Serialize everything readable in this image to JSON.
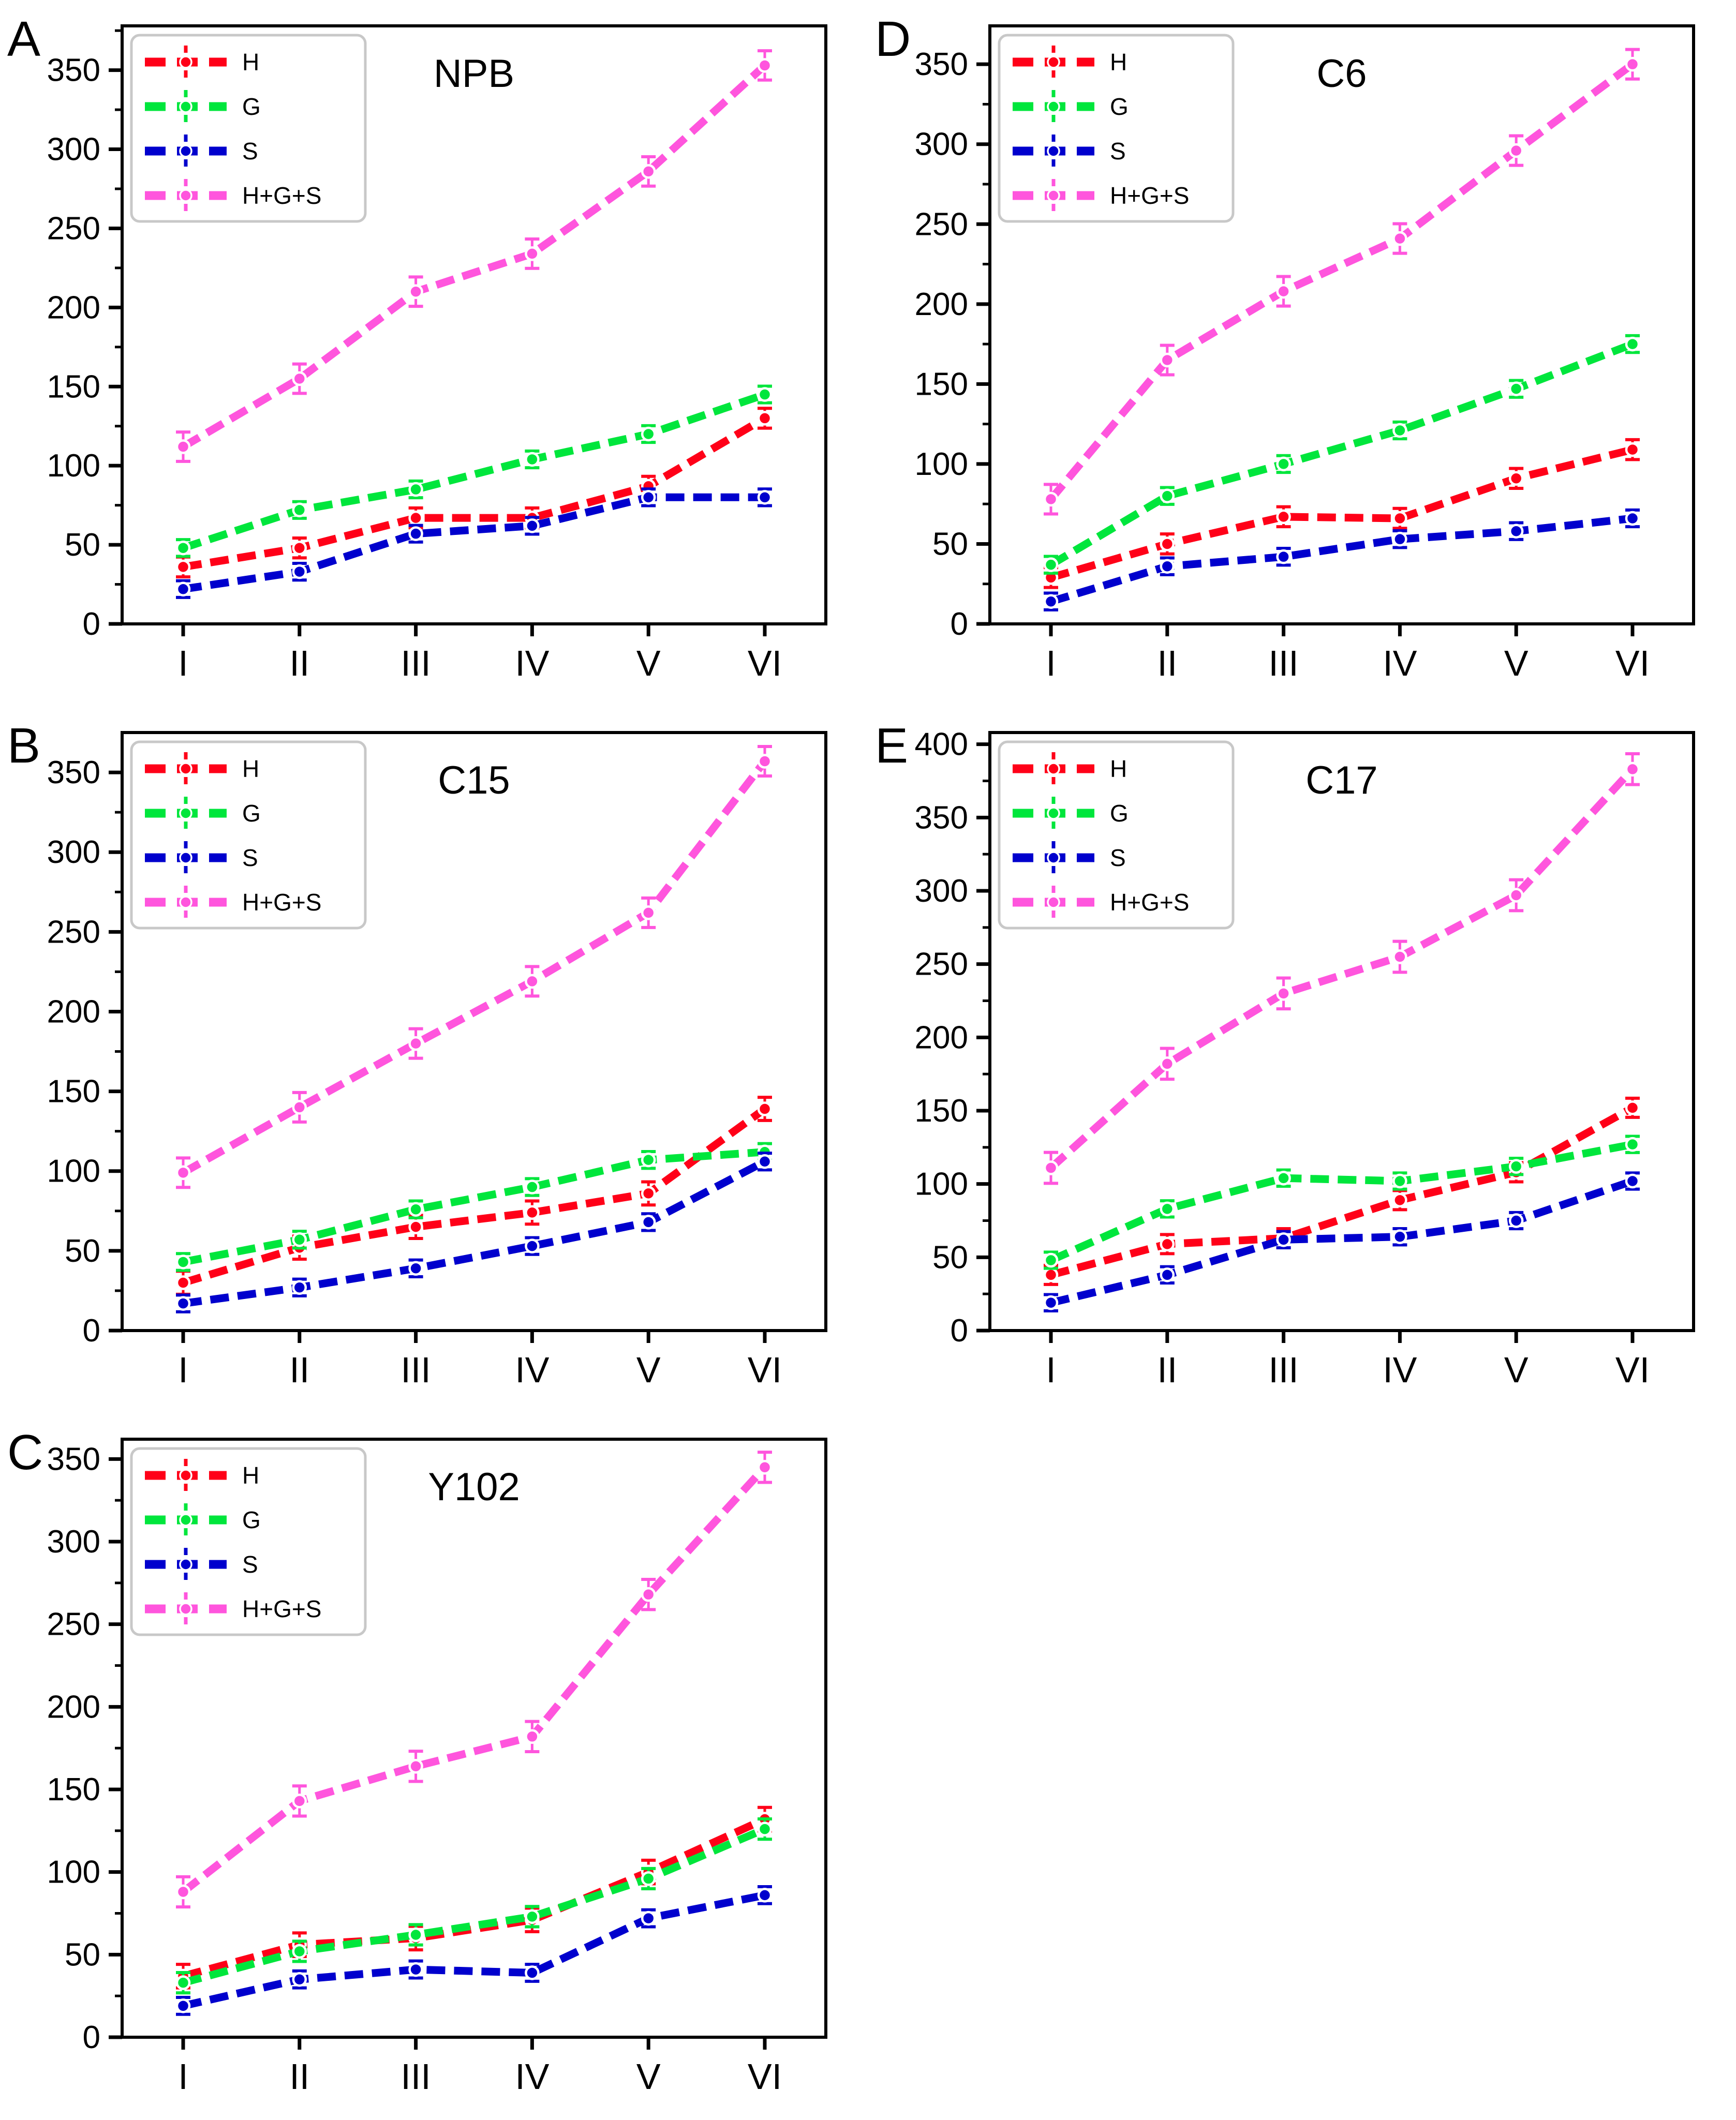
{
  "figure": {
    "background": "#ffffff",
    "panel_order_grid": [
      "A",
      "D",
      "B",
      "E",
      "C",
      ""
    ],
    "axis_color": "#000000",
    "legend_border_color": "#c8c8c8"
  },
  "chart_data": [
    {
      "type": "line",
      "panel": "A",
      "title": "NPB",
      "categories": [
        "I",
        "II",
        "III",
        "IV",
        "V",
        "VI"
      ],
      "xlabel": "",
      "ylabel": "",
      "ylim": [
        0,
        378
      ],
      "yticks": [
        0,
        50,
        100,
        150,
        200,
        250,
        300,
        350
      ],
      "grid": false,
      "legend_position": "upper-left",
      "series": [
        {
          "name": "H",
          "color": "#FF0018",
          "err": 3,
          "values": [
            36,
            48,
            67,
            67,
            87,
            130
          ]
        },
        {
          "name": "G",
          "color": "#00E63C",
          "err": 2,
          "values": [
            48,
            72,
            85,
            104,
            120,
            145
          ]
        },
        {
          "name": "S",
          "color": "#0000CD",
          "err": 2,
          "values": [
            22,
            33,
            57,
            62,
            80,
            80
          ]
        },
        {
          "name": "H+G+S",
          "color": "#FF55DD",
          "err": 6,
          "values": [
            112,
            155,
            210,
            234,
            286,
            353
          ]
        }
      ]
    },
    {
      "type": "line",
      "panel": "D",
      "title": "C6",
      "categories": [
        "I",
        "II",
        "III",
        "IV",
        "V",
        "VI"
      ],
      "xlabel": "",
      "ylabel": "",
      "ylim": [
        0,
        374
      ],
      "yticks": [
        0,
        50,
        100,
        150,
        200,
        250,
        300,
        350
      ],
      "grid": false,
      "legend_position": "upper-left",
      "series": [
        {
          "name": "H",
          "color": "#FF0018",
          "err": 3,
          "values": [
            29,
            50,
            67,
            66,
            91,
            109
          ]
        },
        {
          "name": "G",
          "color": "#00E63C",
          "err": 2,
          "values": [
            37,
            80,
            100,
            121,
            147,
            175
          ]
        },
        {
          "name": "S",
          "color": "#0000CD",
          "err": 2,
          "values": [
            14,
            36,
            42,
            53,
            58,
            66
          ]
        },
        {
          "name": "H+G+S",
          "color": "#FF55DD",
          "err": 6,
          "values": [
            78,
            165,
            208,
            241,
            296,
            350
          ]
        }
      ]
    },
    {
      "type": "line",
      "panel": "B",
      "title": "C15",
      "categories": [
        "I",
        "II",
        "III",
        "IV",
        "V",
        "VI"
      ],
      "xlabel": "",
      "ylabel": "",
      "ylim": [
        0,
        375
      ],
      "yticks": [
        0,
        50,
        100,
        150,
        200,
        250,
        300,
        350
      ],
      "grid": false,
      "legend_position": "upper-left",
      "series": [
        {
          "name": "H",
          "color": "#FF0018",
          "err": 4,
          "values": [
            30,
            52,
            65,
            74,
            86,
            139
          ]
        },
        {
          "name": "G",
          "color": "#00E63C",
          "err": 2,
          "values": [
            43,
            57,
            76,
            90,
            107,
            112
          ]
        },
        {
          "name": "S",
          "color": "#0000CD",
          "err": 2,
          "values": [
            17,
            27,
            39,
            53,
            68,
            106
          ]
        },
        {
          "name": "H+G+S",
          "color": "#FF55DD",
          "err": 6,
          "values": [
            99,
            140,
            180,
            219,
            262,
            357
          ]
        }
      ]
    },
    {
      "type": "line",
      "panel": "E",
      "title": "C17",
      "categories": [
        "I",
        "II",
        "III",
        "IV",
        "V",
        "VI"
      ],
      "xlabel": "",
      "ylabel": "",
      "ylim": [
        0,
        408
      ],
      "yticks": [
        0,
        50,
        100,
        150,
        200,
        250,
        300,
        350,
        400
      ],
      "grid": false,
      "legend_position": "upper-left",
      "series": [
        {
          "name": "H",
          "color": "#FF0018",
          "err": 3,
          "values": [
            38,
            59,
            63,
            89,
            108,
            152
          ]
        },
        {
          "name": "G",
          "color": "#00E63C",
          "err": 2,
          "values": [
            48,
            83,
            104,
            102,
            112,
            127
          ]
        },
        {
          "name": "S",
          "color": "#0000CD",
          "err": 2,
          "values": [
            19,
            38,
            62,
            64,
            75,
            102
          ]
        },
        {
          "name": "H+G+S",
          "color": "#FF55DD",
          "err": 7,
          "values": [
            111,
            182,
            230,
            255,
            297,
            383
          ]
        }
      ]
    },
    {
      "type": "line",
      "panel": "C",
      "title": "Y102",
      "categories": [
        "I",
        "II",
        "III",
        "IV",
        "V",
        "VI"
      ],
      "xlabel": "",
      "ylabel": "",
      "ylim": [
        0,
        362
      ],
      "yticks": [
        0,
        50,
        100,
        150,
        200,
        250,
        300,
        350
      ],
      "grid": false,
      "legend_position": "upper-left",
      "series": [
        {
          "name": "H",
          "color": "#FF0018",
          "err": 4,
          "values": [
            37,
            56,
            60,
            71,
            100,
            132
          ]
        },
        {
          "name": "G",
          "color": "#00E63C",
          "err": 3,
          "values": [
            33,
            52,
            62,
            73,
            96,
            126
          ]
        },
        {
          "name": "S",
          "color": "#0000CD",
          "err": 2,
          "values": [
            19,
            35,
            41,
            39,
            72,
            86
          ]
        },
        {
          "name": "H+G+S",
          "color": "#FF55DD",
          "err": 6,
          "values": [
            88,
            143,
            164,
            182,
            268,
            345
          ]
        }
      ]
    }
  ]
}
